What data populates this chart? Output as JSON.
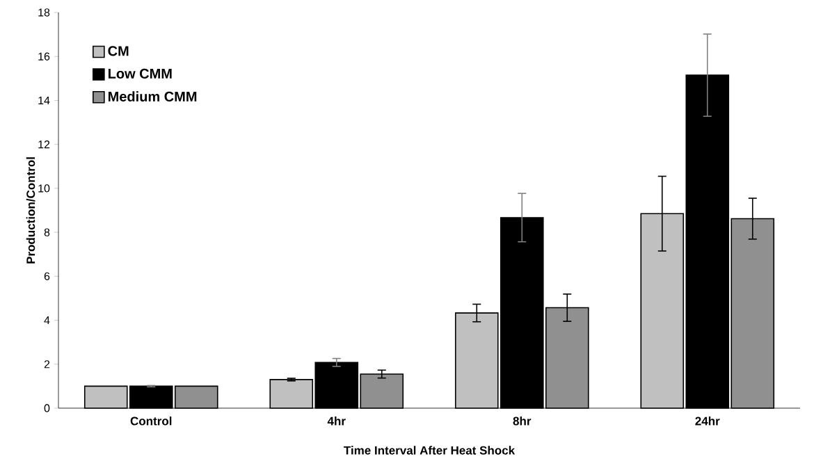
{
  "chart_data": {
    "type": "bar",
    "xlabel": "Time Interval After Heat Shock",
    "ylabel": "Production/Control",
    "categories": [
      "Control",
      "4hr",
      "8hr",
      "24hr"
    ],
    "series": [
      {
        "name": "CM",
        "color": "#c0c0c0",
        "values": [
          1.0,
          1.3,
          4.33,
          8.85
        ],
        "errors": [
          null,
          0.06,
          0.4,
          1.7
        ]
      },
      {
        "name": "Low CMM",
        "color": "#000000",
        "values": [
          1.0,
          2.08,
          8.67,
          15.15
        ],
        "errors": [
          0.03,
          0.18,
          1.1,
          1.87
        ]
      },
      {
        "name": "Medium CMM",
        "color": "#909090",
        "values": [
          1.0,
          1.55,
          4.57,
          8.62
        ],
        "errors": [
          null,
          0.18,
          0.62,
          0.93
        ]
      }
    ],
    "ylim": [
      0,
      18
    ],
    "yticks": [
      0,
      2,
      4,
      6,
      8,
      10,
      12,
      14,
      16,
      18
    ],
    "grid": false,
    "legend": "top left"
  }
}
